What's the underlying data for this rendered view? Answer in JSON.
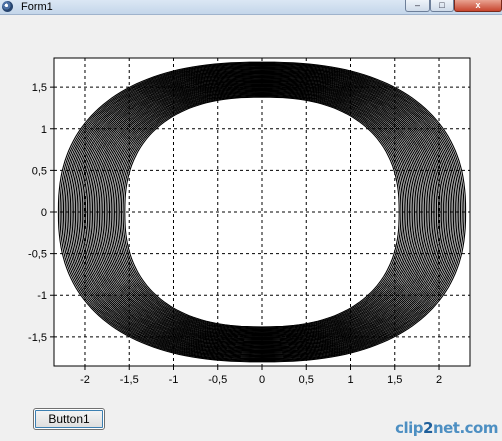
{
  "window": {
    "title": "Form1",
    "controls": {
      "minimize": "–",
      "maximize": "□",
      "close": "x"
    }
  },
  "form": {
    "button1_label": "Button1"
  },
  "chart_data": {
    "type": "scatter",
    "title": "",
    "xlabel": "",
    "ylabel": "",
    "xlim": [
      -2.35,
      2.35
    ],
    "ylim": [
      -1.85,
      1.85
    ],
    "x_ticks": [
      -2,
      -1.5,
      -1,
      -0.5,
      0,
      0.5,
      1,
      1.5,
      2
    ],
    "y_ticks": [
      -1.5,
      -1,
      -0.5,
      0,
      0.5,
      1,
      1.5
    ],
    "x_tick_labels": [
      "-2",
      "-1,5",
      "-1",
      "-0,5",
      "0",
      "0,5",
      "1",
      "1,5",
      "2"
    ],
    "y_tick_labels": [
      "-1,5",
      "-1",
      "-0,5",
      "0",
      "0,5",
      "1",
      "1,5"
    ],
    "grid": true,
    "grid_style": "dashed",
    "legend": "none",
    "series": [
      {
        "description_of_shape": "dense ring of points between an inner and outer closed curve",
        "inner_radius_x": 1.55,
        "inner_radius_y": 1.38,
        "outer_radius_x": 2.3,
        "outer_radius_y": 1.8,
        "color": "#000000"
      }
    ]
  },
  "watermark": {
    "text_a": "clip",
    "text_b": "2",
    "text_c": "net.com"
  }
}
